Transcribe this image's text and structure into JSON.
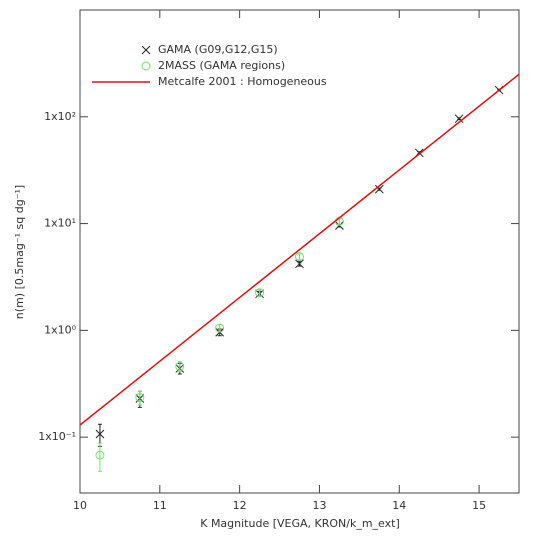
{
  "chart_data": {
    "type": "scatter",
    "xlabel": "K Magnitude [VEGA, KRON/k_m_ext]",
    "ylabel": "n(m) [0.5mag⁻¹ sq dg⁻¹]",
    "xlim": [
      10,
      15.5
    ],
    "xticks": [
      10,
      11,
      12,
      13,
      14,
      15
    ],
    "ylim": [
      0.03,
      1000
    ],
    "ylog": true,
    "yticks": [
      {
        "value": 0.1,
        "label": "1x10⁻¹"
      },
      {
        "value": 1,
        "label": "1x10⁰"
      },
      {
        "value": 10,
        "label": "1x10¹"
      },
      {
        "value": 100,
        "label": "1x10²"
      }
    ],
    "series": [
      {
        "name": "GAMA (G09,G12,G15)",
        "color": "#222222",
        "marker": "x",
        "x": [
          10.25,
          10.75,
          11.25,
          11.75,
          12.25,
          12.75,
          13.25,
          13.75,
          14.25,
          14.75,
          15.25
        ],
        "values": [
          0.107,
          0.23,
          0.44,
          0.96,
          2.2,
          4.2,
          9.6,
          21,
          46,
          96,
          178
        ],
        "errors": [
          0.025,
          0.04,
          0.05,
          0.07,
          0.12,
          0.2,
          0.3,
          0.5,
          1,
          2,
          3
        ]
      },
      {
        "name": "2MASS (GAMA regions)",
        "color": "#77dd77",
        "marker": "circle",
        "x": [
          10.25,
          10.75,
          11.25,
          11.75,
          12.25,
          12.75,
          13.25
        ],
        "values": [
          0.068,
          0.235,
          0.46,
          1.05,
          2.25,
          4.9,
          10.5
        ],
        "errors": [
          0.02,
          0.035,
          0.05,
          0.08,
          0.15,
          0.3,
          0.6
        ]
      },
      {
        "name": "Metcalfe 2001 : Homogeneous",
        "color": "#e01010",
        "marker": "line",
        "x": [
          10,
          15.5
        ],
        "values": [
          0.13,
          250
        ]
      }
    ]
  }
}
